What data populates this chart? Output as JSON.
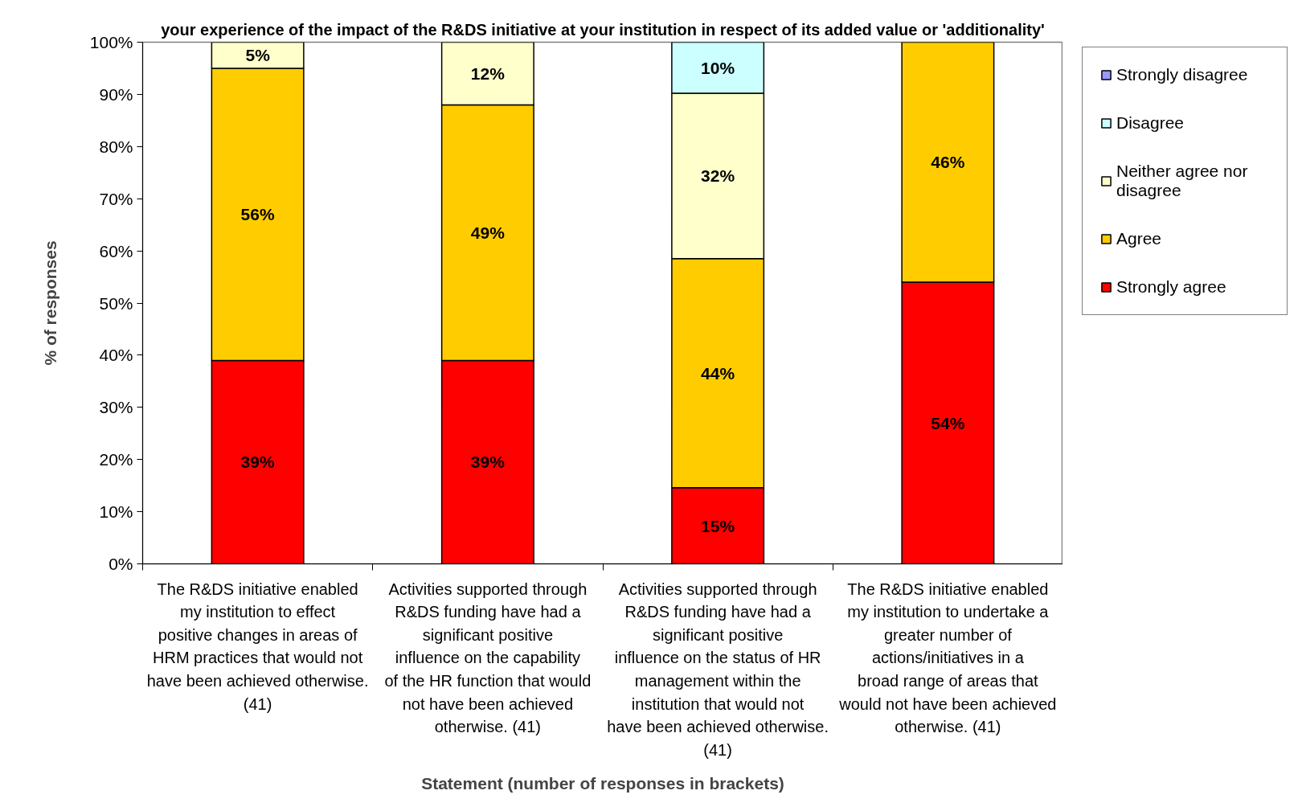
{
  "chart_data": {
    "type": "bar",
    "stacked": true,
    "title": "your experience of the impact of the R&DS initiative at your institution in respect of its added value or 'additionality'",
    "xlabel": "Statement (number of responses in brackets)",
    "ylabel": "% of responses",
    "categories": [
      "The R&DS initiative enabled my institution to effect positive changes in areas of HRM practices that would not have been achieved otherwise. (41)",
      "Activities supported through R&DS funding have had a significant positive influence on the capability of the HR function that would not have been achieved otherwise. (41)",
      "Activities supported through R&DS funding have had a significant positive influence on the status of HR management within the institution that would not have been achieved otherwise. (41)",
      "The R&DS initiative enabled my institution to undertake a greater number of actions/initiatives in a broad range of areas that would not have been achieved otherwise. (41)"
    ],
    "series": [
      {
        "name": "Strongly agree",
        "color": "#ff0000",
        "values": [
          39,
          39,
          14.6,
          54
        ],
        "value_labels": [
          "39%",
          "39%",
          "15%",
          "54%"
        ]
      },
      {
        "name": "Agree",
        "color": "#ffcc00",
        "values": [
          56,
          49,
          43.9,
          46
        ],
        "value_labels": [
          "56%",
          "49%",
          "44%",
          "46%"
        ]
      },
      {
        "name": "Neither agree nor disagree",
        "color": "#ffffcc",
        "values": [
          5,
          12,
          31.7,
          null
        ],
        "value_labels": [
          "5%",
          "12%",
          "32%",
          null
        ]
      },
      {
        "name": "Disagree",
        "color": "#ccffff",
        "values": [
          null,
          null,
          9.8,
          null
        ],
        "value_labels": [
          null,
          null,
          "10%",
          null
        ]
      },
      {
        "name": "Strongly disagree",
        "color": "#9999ff",
        "values": [
          null,
          null,
          null,
          null
        ]
      }
    ],
    "ylim": [
      0,
      100
    ],
    "yticks": [
      {
        "value": 0,
        "label": "0%"
      },
      {
        "value": 10,
        "label": "10%"
      },
      {
        "value": 20,
        "label": "20%"
      },
      {
        "value": 30,
        "label": "30%"
      },
      {
        "value": 40,
        "label": "40%"
      },
      {
        "value": 50,
        "label": "50%"
      },
      {
        "value": 60,
        "label": "60%"
      },
      {
        "value": 70,
        "label": "70%"
      },
      {
        "value": 80,
        "label": "80%"
      },
      {
        "value": 90,
        "label": "90%"
      },
      {
        "value": 100,
        "label": "100%"
      }
    ],
    "legend": "right"
  }
}
